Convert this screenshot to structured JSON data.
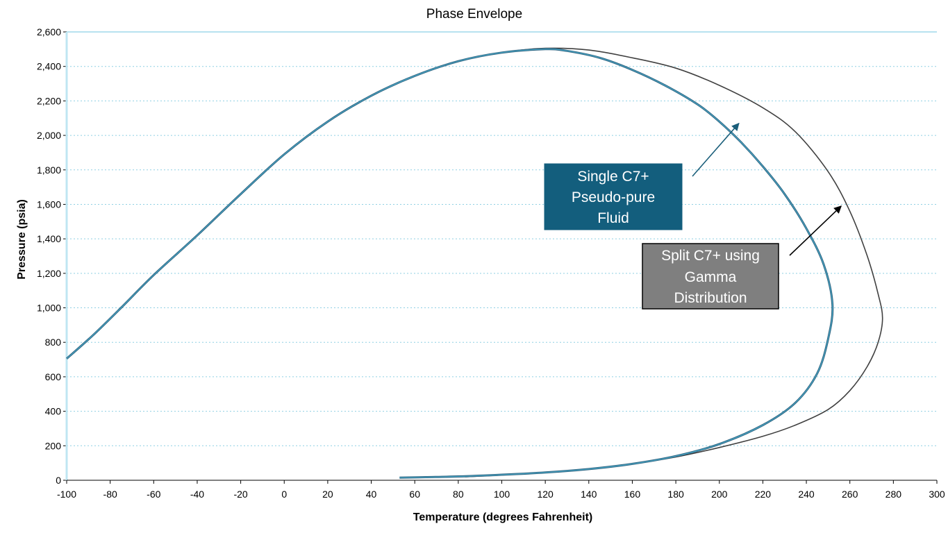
{
  "chart_data": {
    "type": "line",
    "title": "Phase Envelope",
    "xlabel": "Temperature (degrees Fahrenheit)",
    "ylabel": "Pressure (psia)",
    "xlim": [
      -100,
      300
    ],
    "ylim": [
      0,
      2600
    ],
    "x_ticks": [
      -100,
      -80,
      -60,
      -40,
      -20,
      0,
      20,
      40,
      60,
      80,
      100,
      120,
      140,
      160,
      180,
      200,
      220,
      240,
      260,
      280,
      300
    ],
    "x_tick_labels": [
      "-100",
      "-80",
      "-60",
      "-40",
      "-20",
      "0",
      "20",
      "40",
      "60",
      "80",
      "100",
      "120",
      "140",
      "160",
      "180",
      "200",
      "220",
      "240",
      "260",
      "280",
      "300"
    ],
    "y_ticks": [
      0,
      200,
      400,
      600,
      800,
      1000,
      1200,
      1400,
      1600,
      1800,
      2000,
      2200,
      2400,
      2600
    ],
    "y_tick_labels": [
      "0",
      "200",
      "400",
      "600",
      "800",
      "1,000",
      "1,200",
      "1,400",
      "1,600",
      "1,800",
      "2,000",
      "2,200",
      "2,400",
      "2,600"
    ],
    "grid": "horizontal dotted",
    "legend": "none",
    "series": [
      {
        "color": "#2c5f7c",
        "highlight": "#4fb3d1",
        "points": [
          [
            -100,
            705
          ],
          [
            -88,
            840
          ],
          [
            -75,
            1000
          ],
          [
            -60,
            1190
          ],
          [
            -40,
            1420
          ],
          [
            -20,
            1660
          ],
          [
            0,
            1890
          ],
          [
            20,
            2080
          ],
          [
            40,
            2230
          ],
          [
            60,
            2345
          ],
          [
            80,
            2430
          ],
          [
            100,
            2480
          ],
          [
            120,
            2500
          ],
          [
            130,
            2490
          ],
          [
            145,
            2450
          ],
          [
            160,
            2380
          ],
          [
            175,
            2290
          ],
          [
            190,
            2180
          ],
          [
            200,
            2080
          ],
          [
            210,
            1960
          ],
          [
            220,
            1820
          ],
          [
            230,
            1660
          ],
          [
            240,
            1460
          ],
          [
            248,
            1250
          ],
          [
            252,
            1020
          ],
          [
            250,
            820
          ],
          [
            245,
            620
          ],
          [
            235,
            450
          ],
          [
            220,
            320
          ],
          [
            200,
            210
          ],
          [
            180,
            140
          ],
          [
            160,
            95
          ],
          [
            140,
            65
          ],
          [
            120,
            45
          ],
          [
            100,
            32
          ],
          [
            80,
            22
          ],
          [
            65,
            18
          ],
          [
            53,
            15
          ]
        ]
      },
      {
        "color": "#404040",
        "points": [
          [
            -100,
            705
          ],
          [
            -88,
            840
          ],
          [
            -75,
            1000
          ],
          [
            -60,
            1190
          ],
          [
            -40,
            1420
          ],
          [
            -20,
            1660
          ],
          [
            0,
            1890
          ],
          [
            20,
            2080
          ],
          [
            40,
            2230
          ],
          [
            60,
            2345
          ],
          [
            80,
            2430
          ],
          [
            100,
            2480
          ],
          [
            120,
            2505
          ],
          [
            140,
            2495
          ],
          [
            160,
            2450
          ],
          [
            180,
            2390
          ],
          [
            200,
            2290
          ],
          [
            220,
            2160
          ],
          [
            235,
            2020
          ],
          [
            250,
            1790
          ],
          [
            260,
            1560
          ],
          [
            268,
            1300
          ],
          [
            273,
            1080
          ],
          [
            275,
            940
          ],
          [
            273,
            800
          ],
          [
            268,
            660
          ],
          [
            260,
            520
          ],
          [
            250,
            410
          ],
          [
            235,
            320
          ],
          [
            220,
            255
          ],
          [
            200,
            190
          ],
          [
            180,
            135
          ],
          [
            160,
            95
          ],
          [
            140,
            65
          ],
          [
            120,
            45
          ],
          [
            100,
            30
          ],
          [
            83,
            20
          ]
        ]
      }
    ],
    "annotations": [
      {
        "lines": [
          "Single C7+",
          "Pseudo-pure",
          "Fluid"
        ],
        "fill": "#135e7d",
        "stroke": "#135e7d",
        "arrow_to": [
          209,
          2070
        ],
        "arrow_color": "#1a5e7a"
      },
      {
        "lines": [
          "Split C7+ using",
          "Gamma",
          "Distribution"
        ],
        "fill": "#7f7f7f",
        "stroke": "#000000",
        "arrow_to": [
          256,
          1590
        ],
        "arrow_color": "#000000"
      }
    ]
  }
}
